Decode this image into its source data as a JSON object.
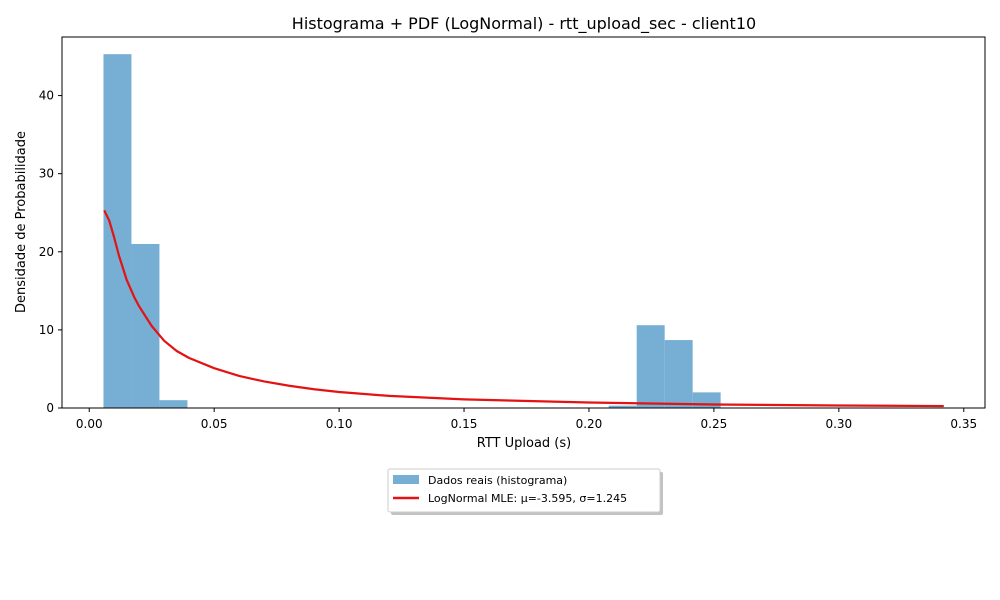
{
  "chart_data": {
    "type": "bar",
    "title": "Histograma + PDF (LogNormal) - rtt_upload_sec - client10",
    "xlabel": "RTT Upload (s)",
    "ylabel": "Densidade de Probabilidade",
    "xlim": [
      -0.0109,
      0.3585
    ],
    "ylim": [
      0,
      47.5
    ],
    "xticks": [
      0.0,
      0.05,
      0.1,
      0.15,
      0.2,
      0.25,
      0.3,
      0.35
    ],
    "xtick_labels": [
      "0.00",
      "0.05",
      "0.10",
      "0.15",
      "0.20",
      "0.25",
      "0.30",
      "0.35"
    ],
    "yticks": [
      0,
      10,
      20,
      30,
      40
    ],
    "ytick_labels": [
      "0",
      "10",
      "20",
      "30",
      "40"
    ],
    "grid": false,
    "legend_placement": "below-center",
    "series": [
      {
        "name": "Dados reais (histograma)",
        "kind": "histogram",
        "color": "#77aed3",
        "bins": [
          {
            "x0": 0.0057,
            "x1": 0.0169,
            "value": 45.3
          },
          {
            "x0": 0.0169,
            "x1": 0.0281,
            "value": 21.0
          },
          {
            "x0": 0.0281,
            "x1": 0.0393,
            "value": 1.0
          },
          {
            "x0": 0.2079,
            "x1": 0.2191,
            "value": 0.3
          },
          {
            "x0": 0.2191,
            "x1": 0.2303,
            "value": 10.6
          },
          {
            "x0": 0.2303,
            "x1": 0.2415,
            "value": 8.7
          },
          {
            "x0": 0.2415,
            "x1": 0.2527,
            "value": 2.0
          }
        ]
      },
      {
        "name": "LogNormal MLE: μ=-3.595, σ=1.245",
        "kind": "line",
        "color": "#e41212",
        "x": [
          0.006,
          0.008,
          0.01,
          0.012,
          0.015,
          0.018,
          0.02,
          0.025,
          0.03,
          0.035,
          0.04,
          0.05,
          0.06,
          0.07,
          0.08,
          0.09,
          0.1,
          0.12,
          0.15,
          0.2,
          0.25,
          0.3,
          0.342
        ],
        "y": [
          25.3,
          24.0,
          21.8,
          19.4,
          16.4,
          14.2,
          13.0,
          10.5,
          8.6,
          7.3,
          6.4,
          5.1,
          4.1,
          3.4,
          2.85,
          2.4,
          2.05,
          1.55,
          1.1,
          0.7,
          0.45,
          0.32,
          0.25
        ]
      }
    ]
  }
}
